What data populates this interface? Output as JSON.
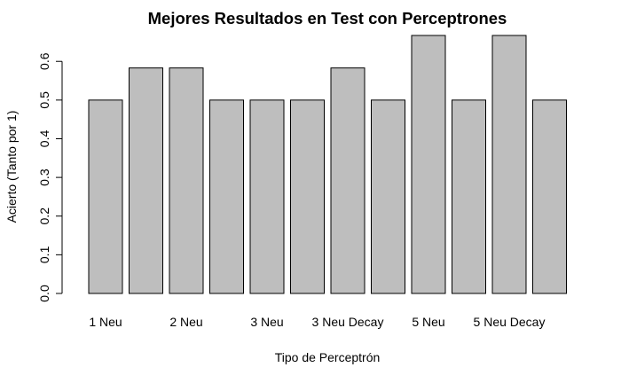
{
  "chart_data": {
    "type": "bar",
    "title": "Mejores Resultados en Test con Perceptrones",
    "xlabel": "Tipo de Perceptrón",
    "ylabel": "Acierto (Tanto por 1)",
    "categories": [
      "1 Neu",
      "",
      "2 Neu",
      "",
      "3 Neu",
      "",
      "3 Neu Decay",
      "",
      "5 Neu",
      "",
      "5 Neu Decay",
      ""
    ],
    "values": [
      0.5,
      0.583,
      0.583,
      0.5,
      0.5,
      0.5,
      0.583,
      0.5,
      0.667,
      0.5,
      0.667,
      0.5
    ],
    "ylim": [
      0,
      0.667
    ],
    "yticks": [
      "0.0",
      "0.1",
      "0.2",
      "0.3",
      "0.4",
      "0.5",
      "0.6"
    ],
    "grid": false,
    "bar_color": "#bebebe",
    "border_color": "#000000"
  }
}
